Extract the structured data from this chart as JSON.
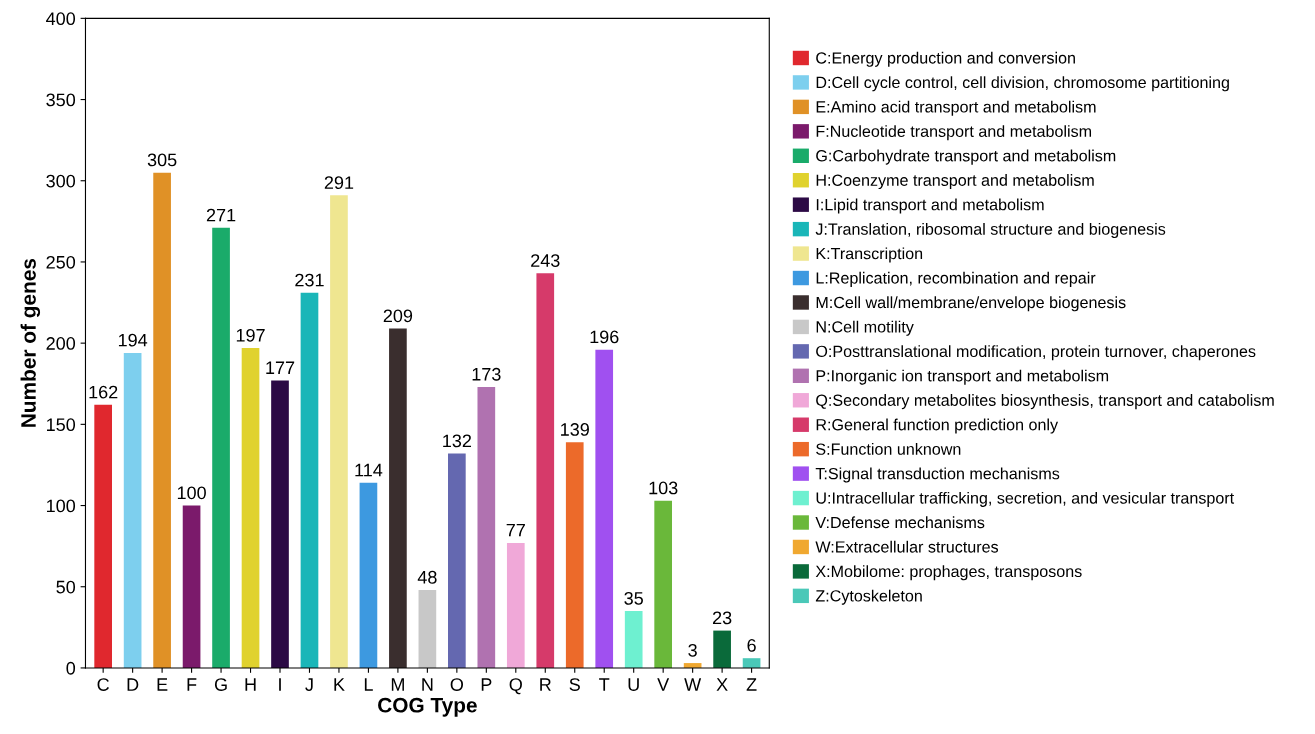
{
  "chart_data": {
    "type": "bar",
    "xlabel": "COG Type",
    "ylabel": "Number of genes",
    "categories": [
      "C",
      "D",
      "E",
      "F",
      "G",
      "H",
      "I",
      "J",
      "K",
      "L",
      "M",
      "N",
      "O",
      "P",
      "Q",
      "R",
      "S",
      "T",
      "U",
      "V",
      "W",
      "X",
      "Z"
    ],
    "series": [
      {
        "name": "C:Energy production and conversion",
        "color": "#e0282e",
        "values": [
          162,
          null,
          null,
          null,
          null,
          null,
          null,
          null,
          null,
          null,
          null,
          null,
          null,
          null,
          null,
          null,
          null,
          null,
          null,
          null,
          null,
          null,
          null
        ]
      },
      {
        "name": "D:Cell cycle control, cell division, chromosome partitioning",
        "color": "#7dcfee",
        "values": [
          null,
          194,
          null,
          null,
          null,
          null,
          null,
          null,
          null,
          null,
          null,
          null,
          null,
          null,
          null,
          null,
          null,
          null,
          null,
          null,
          null,
          null,
          null
        ]
      },
      {
        "name": "E:Amino acid transport and metabolism",
        "color": "#e09126",
        "values": [
          null,
          null,
          305,
          null,
          null,
          null,
          null,
          null,
          null,
          null,
          null,
          null,
          null,
          null,
          null,
          null,
          null,
          null,
          null,
          null,
          null,
          null,
          null
        ]
      },
      {
        "name": "F:Nucleotide transport and metabolism",
        "color": "#7b1a6b",
        "values": [
          null,
          null,
          null,
          100,
          null,
          null,
          null,
          null,
          null,
          null,
          null,
          null,
          null,
          null,
          null,
          null,
          null,
          null,
          null,
          null,
          null,
          null,
          null
        ]
      },
      {
        "name": "G:Carbohydrate transport and metabolism",
        "color": "#1aab6a",
        "values": [
          null,
          null,
          null,
          null,
          271,
          null,
          null,
          null,
          null,
          null,
          null,
          null,
          null,
          null,
          null,
          null,
          null,
          null,
          null,
          null,
          null,
          null,
          null
        ]
      },
      {
        "name": "H:Coenzyme transport and metabolism",
        "color": "#e0d22e",
        "values": [
          null,
          null,
          null,
          null,
          null,
          197,
          null,
          null,
          null,
          null,
          null,
          null,
          null,
          null,
          null,
          null,
          null,
          null,
          null,
          null,
          null,
          null,
          null
        ]
      },
      {
        "name": "I:Lipid transport and metabolism",
        "color": "#2c0a45",
        "values": [
          null,
          null,
          null,
          null,
          null,
          null,
          177,
          null,
          null,
          null,
          null,
          null,
          null,
          null,
          null,
          null,
          null,
          null,
          null,
          null,
          null,
          null,
          null
        ]
      },
      {
        "name": "J:Translation, ribosomal structure and biogenesis",
        "color": "#1ab6b8",
        "values": [
          null,
          null,
          null,
          null,
          null,
          null,
          null,
          231,
          null,
          null,
          null,
          null,
          null,
          null,
          null,
          null,
          null,
          null,
          null,
          null,
          null,
          null,
          null
        ]
      },
      {
        "name": "K:Transcription",
        "color": "#efe690",
        "values": [
          null,
          null,
          null,
          null,
          null,
          null,
          null,
          null,
          291,
          null,
          null,
          null,
          null,
          null,
          null,
          null,
          null,
          null,
          null,
          null,
          null,
          null,
          null
        ]
      },
      {
        "name": "L:Replication, recombination and repair",
        "color": "#3d99e0",
        "values": [
          null,
          null,
          null,
          null,
          null,
          null,
          null,
          null,
          null,
          114,
          null,
          null,
          null,
          null,
          null,
          null,
          null,
          null,
          null,
          null,
          null,
          null,
          null
        ]
      },
      {
        "name": "M:Cell wall/membrane/envelope biogenesis",
        "color": "#3a2e2e",
        "values": [
          null,
          null,
          null,
          null,
          null,
          null,
          null,
          null,
          null,
          null,
          209,
          null,
          null,
          null,
          null,
          null,
          null,
          null,
          null,
          null,
          null,
          null,
          null
        ]
      },
      {
        "name": "N:Cell motility",
        "color": "#c8c8c8",
        "values": [
          null,
          null,
          null,
          null,
          null,
          null,
          null,
          null,
          null,
          null,
          null,
          48,
          null,
          null,
          null,
          null,
          null,
          null,
          null,
          null,
          null,
          null,
          null
        ]
      },
      {
        "name": "O:Posttranslational modification, protein turnover, chaperones",
        "color": "#6468b0",
        "values": [
          null,
          null,
          null,
          null,
          null,
          null,
          null,
          null,
          null,
          null,
          null,
          null,
          132,
          null,
          null,
          null,
          null,
          null,
          null,
          null,
          null,
          null,
          null
        ]
      },
      {
        "name": "P:Inorganic ion transport and metabolism",
        "color": "#b072b0",
        "values": [
          null,
          null,
          null,
          null,
          null,
          null,
          null,
          null,
          null,
          null,
          null,
          null,
          null,
          173,
          null,
          null,
          null,
          null,
          null,
          null,
          null,
          null,
          null
        ]
      },
      {
        "name": "Q:Secondary metabolites biosynthesis, transport and catabolism",
        "color": "#f0a8d8",
        "values": [
          null,
          null,
          null,
          null,
          null,
          null,
          null,
          null,
          null,
          null,
          null,
          null,
          null,
          null,
          77,
          null,
          null,
          null,
          null,
          null,
          null,
          null,
          null
        ]
      },
      {
        "name": "R:General function prediction only",
        "color": "#d63a6a",
        "values": [
          null,
          null,
          null,
          null,
          null,
          null,
          null,
          null,
          null,
          null,
          null,
          null,
          null,
          null,
          null,
          243,
          null,
          null,
          null,
          null,
          null,
          null,
          null
        ]
      },
      {
        "name": "S:Function unknown",
        "color": "#ec6a2a",
        "values": [
          null,
          null,
          null,
          null,
          null,
          null,
          null,
          null,
          null,
          null,
          null,
          null,
          null,
          null,
          null,
          null,
          139,
          null,
          null,
          null,
          null,
          null,
          null
        ]
      },
      {
        "name": "T:Signal transduction mechanisms",
        "color": "#a050f0",
        "values": [
          null,
          null,
          null,
          null,
          null,
          null,
          null,
          null,
          null,
          null,
          null,
          null,
          null,
          null,
          null,
          null,
          null,
          196,
          null,
          null,
          null,
          null,
          null
        ]
      },
      {
        "name": "U:Intracellular trafficking, secretion, and vesicular transport",
        "color": "#6ef0d0",
        "values": [
          null,
          null,
          null,
          null,
          null,
          null,
          null,
          null,
          null,
          null,
          null,
          null,
          null,
          null,
          null,
          null,
          null,
          null,
          35,
          null,
          null,
          null,
          null
        ]
      },
      {
        "name": "V:Defense mechanisms",
        "color": "#6ab83a",
        "values": [
          null,
          null,
          null,
          null,
          null,
          null,
          null,
          null,
          null,
          null,
          null,
          null,
          null,
          null,
          null,
          null,
          null,
          null,
          null,
          103,
          null,
          null,
          null
        ]
      },
      {
        "name": "W:Extracellular structures",
        "color": "#f0a830",
        "values": [
          null,
          null,
          null,
          null,
          null,
          null,
          null,
          null,
          null,
          null,
          null,
          null,
          null,
          null,
          null,
          null,
          null,
          null,
          null,
          null,
          3,
          null,
          null
        ]
      },
      {
        "name": "X:Mobilome: prophages, transposons",
        "color": "#0a6a3a",
        "values": [
          null,
          null,
          null,
          null,
          null,
          null,
          null,
          null,
          null,
          null,
          null,
          null,
          null,
          null,
          null,
          null,
          null,
          null,
          null,
          null,
          null,
          23,
          null
        ]
      },
      {
        "name": "Z:Cytoskeleton",
        "color": "#4ac8b8",
        "values": [
          null,
          null,
          null,
          null,
          null,
          null,
          null,
          null,
          null,
          null,
          null,
          null,
          null,
          null,
          null,
          null,
          null,
          null,
          null,
          null,
          null,
          null,
          6
        ]
      }
    ],
    "ylim": [
      0,
      400
    ],
    "yticks": [
      0,
      50,
      100,
      150,
      200,
      250,
      300,
      350,
      400
    ],
    "data_labels": true,
    "grid": false,
    "legend": "right"
  }
}
